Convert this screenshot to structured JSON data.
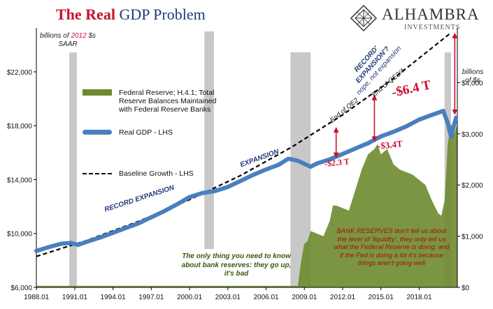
{
  "title_part1": "The Real",
  "title_part2": "GDP Problem",
  "logo": {
    "name": "ALHAMBRA",
    "subtitle": "INVESTMENTS"
  },
  "left_axis_note": {
    "line1": "billions of",
    "year": "2012",
    "line1_end": "$s",
    "line2": "SAAR"
  },
  "right_axis_note": {
    "line1": "billions",
    "line2": "of $s"
  },
  "legend": [
    {
      "label": "Federal Reserve; H.4.1; Total Reserve Balances Maintained with Federal Reserve Banks",
      "color": "#6e8a2e"
    },
    {
      "label": "Real GDP - LHS",
      "color": "#4a7fbf"
    },
    {
      "label": "Baseline Growth - LHS",
      "color": "#000000"
    }
  ],
  "annotations": {
    "record_expansion": "RECORD EXPANSION",
    "expansion": "EXPANSION",
    "record_q1": "RECORD'",
    "record_q2": "EXPANSION'?",
    "record_q3": "nope, not expansion",
    "end_qe2": "End of QE2",
    "end_qe34": "End of QE3/4",
    "gap1": "-$2.3 T",
    "gap2": "-$3.4T",
    "gap3": "-$6.4 T",
    "green_note": "The only thing you need to know about bank reserves: they go up, it's bad",
    "red_note": "BANK RESERVES don't tell us about the level of 'liquidity', they only tell us what the Federal Reserve is doing; and if the Fed is doing a lot it's because things aren't going well"
  },
  "colors": {
    "gdp": "#4a7fbf",
    "reserves": "#6e8a2e",
    "baseline": "#000000",
    "recession": "#c8c8c8",
    "accent": "#c8102e"
  },
  "chart_data": {
    "type": "line",
    "x_ticks": [
      "1988.01",
      "1991.01",
      "1994.01",
      "1997.01",
      "2000.01",
      "2003.01",
      "2006.01",
      "2009.01",
      "2012.01",
      "2015.01",
      "2018.01"
    ],
    "y_left_ticks": [
      "$6,000",
      "$10,000",
      "$14,000",
      "$18,000",
      "$22,000"
    ],
    "y_left_range": [
      6000,
      25000
    ],
    "y_right_ticks": [
      "$0",
      "$1,000",
      "$2,000",
      "$3,000",
      "$4,000"
    ],
    "y_right_range": [
      0,
      5000
    ],
    "recessions": [
      [
        1990.58,
        1991.17
      ],
      [
        2001.17,
        2001.92
      ],
      [
        2007.92,
        2009.5
      ],
      [
        2020.0,
        2020.5
      ]
    ],
    "series": [
      {
        "name": "Real GDP - LHS",
        "axis": "left",
        "x": [
          1988.0,
          1989.0,
          1990.0,
          1990.75,
          1991.25,
          1992.0,
          1993.0,
          1994.0,
          1995.0,
          1996.0,
          1997.0,
          1998.0,
          1999.0,
          2000.0,
          2001.0,
          2002.0,
          2003.0,
          2004.0,
          2005.0,
          2006.0,
          2007.0,
          2007.75,
          2008.5,
          2009.5,
          2010.0,
          2011.0,
          2012.0,
          2013.0,
          2014.0,
          2015.0,
          2016.0,
          2017.0,
          2018.0,
          2019.0,
          2019.9,
          2020.25,
          2020.5,
          2020.9
        ],
        "values": [
          8700,
          9000,
          9250,
          9300,
          9150,
          9400,
          9700,
          10050,
          10400,
          10750,
          11200,
          11650,
          12150,
          12700,
          13000,
          13150,
          13450,
          13900,
          14350,
          14750,
          15100,
          15550,
          15400,
          14950,
          15200,
          15500,
          15900,
          16300,
          16700,
          17200,
          17550,
          17950,
          18450,
          18800,
          19100,
          18200,
          17200,
          18600
        ]
      },
      {
        "name": "Baseline Growth - LHS",
        "axis": "left",
        "x": [
          1988.0,
          1992.0,
          1996.0,
          2000.0,
          2004.0,
          2008.0,
          2012.0,
          2016.0,
          2020.5
        ],
        "values": [
          8300,
          9500,
          10900,
          12500,
          14300,
          16400,
          18800,
          21500,
          24900
        ]
      },
      {
        "name": "Federal Reserve; H.4.1; Total Reserve Balances Maintained with Federal Reserve Banks",
        "axis": "right",
        "x": [
          1988.0,
          2008.5,
          2008.75,
          2009.0,
          2009.25,
          2009.5,
          2010.0,
          2010.5,
          2011.0,
          2011.25,
          2011.5,
          2012.0,
          2012.5,
          2013.0,
          2013.5,
          2014.0,
          2014.5,
          2014.75,
          2015.0,
          2015.5,
          2016.0,
          2016.5,
          2017.0,
          2017.5,
          2018.0,
          2018.5,
          2019.0,
          2019.5,
          2019.75,
          2020.0,
          2020.25,
          2020.5,
          2020.75,
          2021.0
        ],
        "values": [
          30,
          30,
          500,
          850,
          900,
          1100,
          1050,
          1000,
          1300,
          1600,
          1600,
          1550,
          1500,
          1900,
          2300,
          2600,
          2700,
          2800,
          2600,
          2700,
          2400,
          2300,
          2250,
          2200,
          2100,
          2000,
          1700,
          1450,
          1400,
          1700,
          2800,
          3200,
          3000,
          3200
        ]
      }
    ]
  }
}
